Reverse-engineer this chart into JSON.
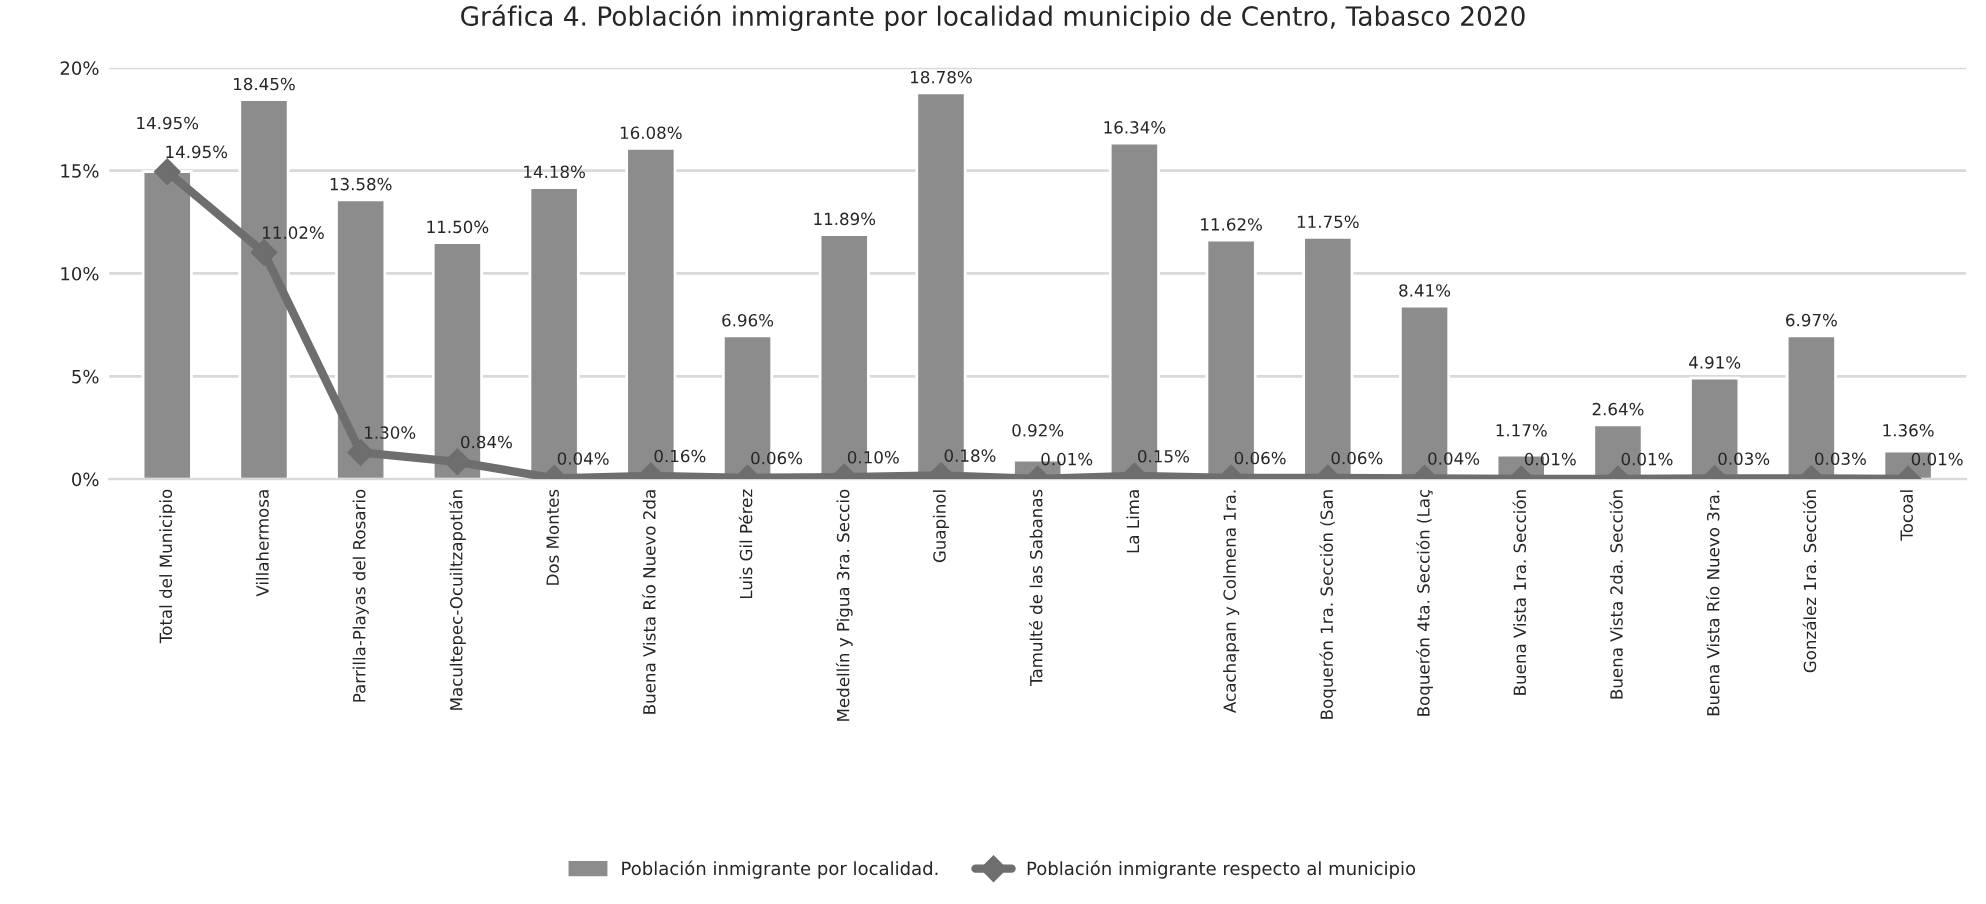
{
  "chart_data": {
    "type": "bar",
    "title": "Gráfica 4. Población inmigrante por localidad municipio de Centro, Tabasco 2020",
    "categories": [
      "Total del Municipio",
      "Villahermosa",
      "Parrilla-Playas del Rosario",
      "Macultepec-Ocuiltzapotlán",
      "Dos Montes",
      "Buena Vista Río Nuevo 2da",
      "Luis Gil Pérez",
      "Medellín y Pigua 3ra. Seccio",
      "Guapinol",
      "Tamulté de las Sabanas",
      "La Lima",
      "Acachapan y Colmena 1ra.",
      "Boquerón 1ra. Sección (San",
      "Boquerón 4ta. Sección (Laç",
      "Buena Vista 1ra. Sección",
      "Buena Vista 2da. Sección",
      "Buena Vista Río Nuevo 3ra.",
      "González 1ra. Sección",
      "Tocoal"
    ],
    "series": [
      {
        "name": "Población inmigrante por localidad.",
        "color": "#8c8c8c",
        "values": [
          14.95,
          18.45,
          13.58,
          11.5,
          14.18,
          16.08,
          6.96,
          11.89,
          18.78,
          0.92,
          16.34,
          11.62,
          11.75,
          8.41,
          1.17,
          2.64,
          4.91,
          6.97,
          1.36
        ],
        "value_labels": [
          "14.95%",
          "18.45%",
          "13.58%",
          "11.50%",
          "14.18%",
          "16.08%",
          "6.96%",
          "11.89%",
          "18.78%",
          "0.92%",
          "16.34%",
          "11.62%",
          "11.75%",
          "8.41%",
          "1.17%",
          "2.64%",
          "4.91%",
          "6.97%",
          "1.36%"
        ]
      },
      {
        "name": "Población inmigrante respecto al municipio",
        "type": "line",
        "color": "#6e6e6e",
        "marker": "diamond",
        "values": [
          14.95,
          11.02,
          1.3,
          0.84,
          0.04,
          0.16,
          0.06,
          0.1,
          0.18,
          0.01,
          0.15,
          0.06,
          0.06,
          0.04,
          0.01,
          0.01,
          0.03,
          0.03,
          0.01
        ],
        "value_labels": [
          "14.95%",
          "11.02%",
          "1.30%",
          "0.84%",
          "0.04%",
          "0.16%",
          "0.06%",
          "0.10%",
          "0.18%",
          "0.01%",
          "0.15%",
          "0.06%",
          "0.06%",
          "0.04%",
          "0.01%",
          "0.01%",
          "0.03%",
          "0.03%",
          "0.01%"
        ]
      }
    ],
    "ylim": [
      0,
      20
    ],
    "yticks": [
      {
        "value": 0,
        "label": "0%"
      },
      {
        "value": 5,
        "label": "5%"
      },
      {
        "value": 10,
        "label": "10%"
      },
      {
        "value": 15,
        "label": "15%"
      },
      {
        "value": 20,
        "label": "20%"
      }
    ],
    "grid": "y",
    "legend": "bottom"
  }
}
